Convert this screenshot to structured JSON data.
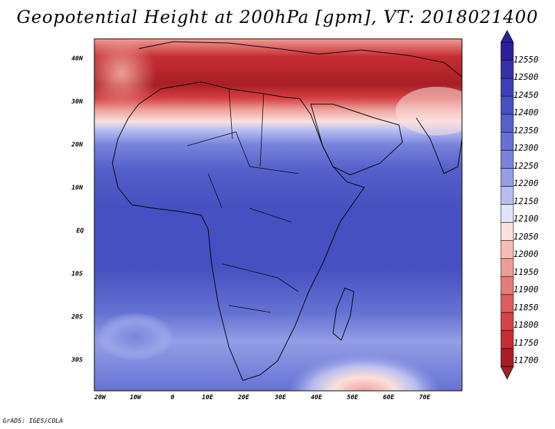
{
  "title": "Geopotential Height at 200hPa [gpm], VT: 2018021400",
  "footer": "GrADS: IGES/COLA",
  "map": {
    "lat_labels": [
      "40N",
      "30N",
      "20N",
      "10N",
      "EQ",
      "10S",
      "20S",
      "30S"
    ],
    "lon_labels": [
      "20W",
      "10W",
      "0",
      "10E",
      "20E",
      "30E",
      "40E",
      "50E",
      "60E",
      "70E"
    ],
    "lon_range": [
      -22,
      79
    ],
    "lat_range": [
      -37,
      44
    ]
  },
  "colorbar": {
    "levels": [
      "12550",
      "12500",
      "12450",
      "12400",
      "12350",
      "12300",
      "12250",
      "12200",
      "12150",
      "12100",
      "12050",
      "12000",
      "11950",
      "11900",
      "11850",
      "11800",
      "11750",
      "11700"
    ],
    "colors": [
      "#2c1f9c",
      "#3532a8",
      "#3d41b5",
      "#4650c0",
      "#5660c9",
      "#6672d3",
      "#7884dc",
      "#949ee6",
      "#b6bdf0",
      "#e2e5fa",
      "#fbe0dc",
      "#f5bcb5",
      "#ee9d96",
      "#e67c78",
      "#df5d5c",
      "#d74346",
      "#c52e33",
      "#a81e25"
    ]
  }
}
